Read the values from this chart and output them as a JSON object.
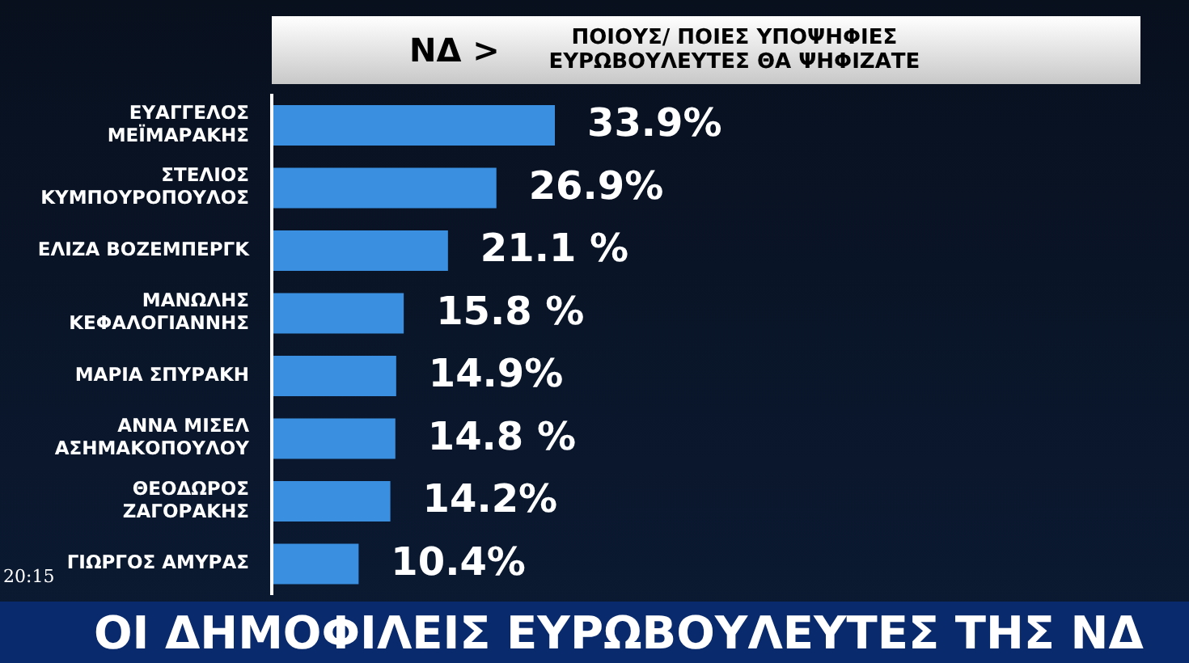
{
  "chart_data": {
    "type": "bar",
    "orientation": "horizontal",
    "title": "ΝΔ >",
    "subtitle": "ΠΟΙΟΥΣ/ ΠΟΙΕΣ ΥΠΟΨΗΦΙΕΣ ΕΥΡΩΒΟΥΛΕΥΤΕΣ ΘΑ ΨΗΦΙΖΑΤΕ",
    "categories": [
      "ΕΥΑΓΓΕΛΟΣ\nΜΕΪΜΑΡΑΚΗΣ",
      "ΣΤΕΛΙΟΣ\nΚΥΜΠΟΥΡΟΠΟΥΛΟΣ",
      "ΕΛΙΖΑ ΒΟΖΕΜΠΕΡΓΚ",
      "ΜΑΝΩΛΗΣ\nΚΕΦΑΛΟΓΙΑΝΝΗΣ",
      "ΜΑΡΙΑ ΣΠΥΡΑΚΗ",
      "ΑΝΝΑ ΜΙΣΕΛ\nΑΣΗΜΑΚΟΠΟΥΛΟΥ",
      "ΘΕΟΔΩΡΟΣ\nΖΑΓΟΡΑΚΗΣ",
      "ΓΙΩΡΓΟΣ ΑΜΥΡΑΣ"
    ],
    "values": [
      33.9,
      26.9,
      21.1,
      15.8,
      14.9,
      14.8,
      14.2,
      10.4
    ],
    "value_labels": [
      "33.9%",
      "26.9%",
      "21.1 %",
      "15.8 %",
      "14.9%",
      "14.8 %",
      "14.2%",
      "10.4%"
    ],
    "color": "#3a8fe0",
    "annotations": [
      "ΟΙ ΔΗΜΟΦΙΛΕΙΣ ΕΥΡΩΒΟΥΛΕΥΤΕΣ ΤΗΣ ΝΔ",
      "20:15"
    ]
  }
}
